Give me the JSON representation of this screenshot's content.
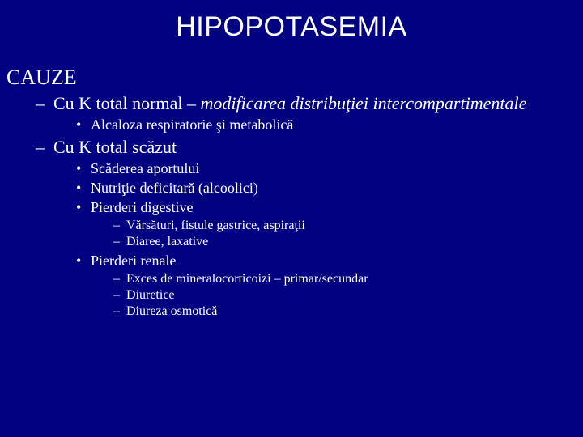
{
  "colors": {
    "background": "#000080",
    "text": "#ffffff"
  },
  "typography": {
    "title_font": "Arial",
    "body_font": "Times New Roman",
    "title_size_pt": 26,
    "heading_size_pt": 20,
    "l1_size_pt": 17,
    "l2_size_pt": 14,
    "l3_size_pt": 12
  },
  "slide": {
    "title": "HIPOPOTASEMIA",
    "heading": "CAUZE",
    "items": [
      {
        "text_prefix": "Cu K total normal – ",
        "text_italic": "modificarea distribuţiei intercompartimentale",
        "children": [
          {
            "text": "Alcaloza respiratorie şi metabolică"
          }
        ]
      },
      {
        "text_prefix": "Cu K total scăzut",
        "text_italic": "",
        "children": [
          {
            "text": "Scăderea aportului"
          },
          {
            "text": "Nutriţie deficitară (alcoolici)"
          },
          {
            "text": "Pierderi digestive",
            "children": [
              {
                "text": "Vărsături, fistule gastrice, aspiraţii"
              },
              {
                "text": "Diaree, laxative"
              }
            ]
          },
          {
            "text": "Pierderi renale",
            "children": [
              {
                "text": "Exces de mineralocorticoizi – primar/secundar"
              },
              {
                "text": "Diuretice"
              },
              {
                "text": "Diureza osmotică"
              }
            ]
          }
        ]
      }
    ]
  }
}
